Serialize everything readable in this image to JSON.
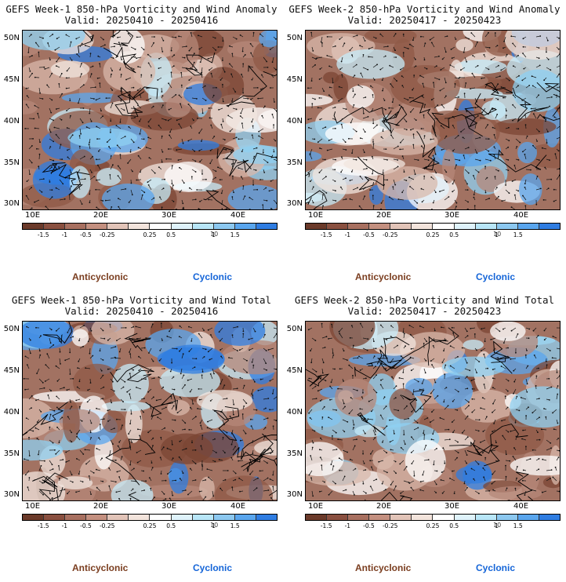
{
  "panels": [
    {
      "title": "GEFS Week-1 850-hPa Vorticity and Wind Anomaly",
      "valid": "Valid: 20250410 - 20250416"
    },
    {
      "title": "GEFS Week-2 850-hPa Vorticity and Wind Anomaly",
      "valid": "Valid: 20250417 - 20250423"
    },
    {
      "title": "GEFS Week-1 850-hPa Vorticity and Wind Total",
      "valid": "Valid: 20250410 - 20250416"
    },
    {
      "title": "GEFS Week-2 850-hPa Vorticity and Wind Total",
      "valid": "Valid: 20250417 - 20250423"
    }
  ],
  "lat_ticks": [
    "50N",
    "45N",
    "40N",
    "35N",
    "30N"
  ],
  "lon_ticks": [
    "10E",
    "20E",
    "30E",
    "40E"
  ],
  "colorbar": {
    "labels": [
      "-1.5",
      "-1",
      "-0.5",
      "-0.25",
      "0.25",
      "0.5",
      "1",
      "1.5"
    ],
    "scale_label": "10",
    "colors": [
      "#6b3a2a",
      "#8a5040",
      "#a87060",
      "#c49080",
      "#e2c4b8",
      "#f3e4dc",
      "#ffffff",
      "#dff3fb",
      "#b8e6f8",
      "#8cc8f0",
      "#5aa6ee",
      "#2f7de2"
    ]
  },
  "legend": {
    "anticyclonic": "Anticyclonic",
    "cyclonic": "Cyclonic"
  }
}
